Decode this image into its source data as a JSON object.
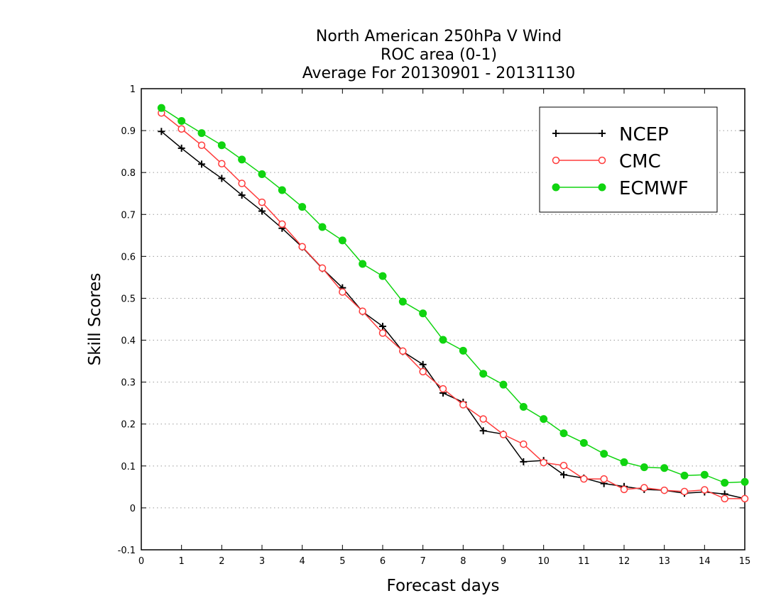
{
  "chart_data": {
    "type": "line",
    "title_lines": [
      "North American 250hPa V Wind",
      "ROC area (0-1)",
      "Average For 20130901 - 20131130"
    ],
    "xlabel": "Forecast days",
    "ylabel": "Skill Scores",
    "xlim": [
      0,
      15
    ],
    "ylim": [
      -0.1,
      1
    ],
    "x_ticks": [
      "0",
      "1",
      "2",
      "3",
      "4",
      "5",
      "6",
      "7",
      "8",
      "9",
      "10",
      "11",
      "12",
      "13",
      "14",
      "15"
    ],
    "y_ticks": [
      "-0.1",
      "0",
      "0.1",
      "0.2",
      "0.3",
      "0.4",
      "0.5",
      "0.6",
      "0.7",
      "0.8",
      "0.9",
      "1"
    ],
    "grid": "dotted horizontal",
    "legend_position": "top-right",
    "x": [
      0.5,
      1,
      1.5,
      2,
      2.5,
      3,
      3.5,
      4,
      4.5,
      5,
      5.5,
      6,
      6.5,
      7,
      7.5,
      8,
      8.5,
      9,
      9.5,
      10,
      10.5,
      11,
      11.5,
      12,
      12.5,
      13,
      13.5,
      14,
      14.5,
      15
    ],
    "series": [
      {
        "name": "NCEP",
        "color": "#000000",
        "marker": "plus",
        "values": [
          0.898,
          0.858,
          0.82,
          0.786,
          0.746,
          0.708,
          0.667,
          0.622,
          0.571,
          0.525,
          0.468,
          0.433,
          0.373,
          0.342,
          0.274,
          0.252,
          0.184,
          0.176,
          0.11,
          0.113,
          0.079,
          0.071,
          0.058,
          0.051,
          0.044,
          0.042,
          0.035,
          0.038,
          0.033,
          0.022
        ]
      },
      {
        "name": "CMC",
        "color": "#ff3b3b",
        "marker": "open-circle",
        "values": [
          0.942,
          0.904,
          0.865,
          0.821,
          0.774,
          0.729,
          0.677,
          0.623,
          0.572,
          0.515,
          0.469,
          0.417,
          0.374,
          0.325,
          0.284,
          0.246,
          0.212,
          0.175,
          0.152,
          0.108,
          0.101,
          0.069,
          0.069,
          0.044,
          0.048,
          0.042,
          0.039,
          0.043,
          0.022,
          0.022
        ]
      },
      {
        "name": "ECMWF",
        "color": "#10d410",
        "marker": "filled-circle",
        "values": [
          0.954,
          0.923,
          0.894,
          0.865,
          0.831,
          0.796,
          0.758,
          0.718,
          0.67,
          0.638,
          0.582,
          0.553,
          0.492,
          0.464,
          0.401,
          0.375,
          0.32,
          0.294,
          0.241,
          0.212,
          0.178,
          0.155,
          0.129,
          0.109,
          0.097,
          0.095,
          0.077,
          0.079,
          0.06,
          0.062
        ]
      }
    ]
  }
}
